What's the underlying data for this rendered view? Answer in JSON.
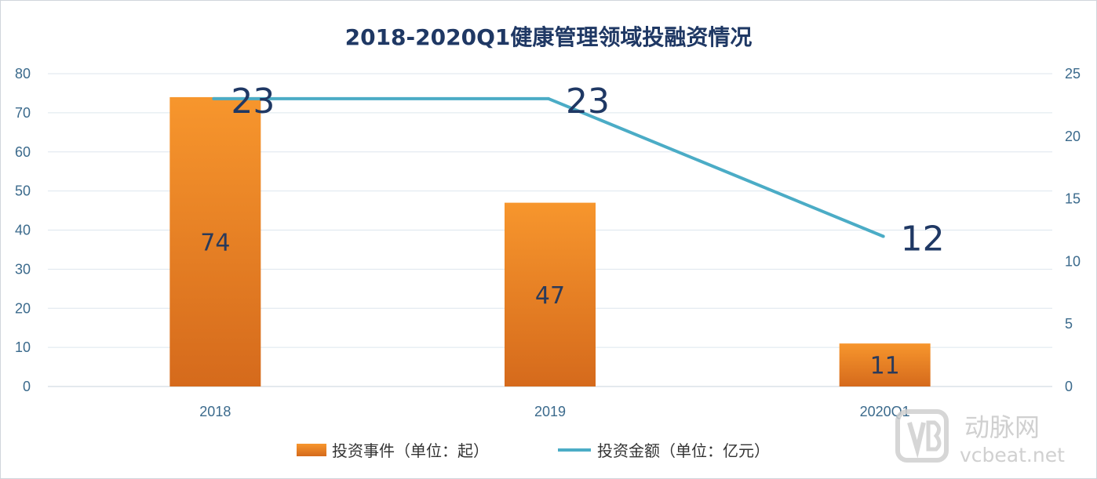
{
  "chart_data": {
    "type": "bar+line",
    "title": "2018-2020Q1健康管理领域投融资情况",
    "categories": [
      "2018",
      "2019",
      "2020Q1"
    ],
    "series": [
      {
        "name": "投资事件（单位：起）",
        "type": "bar",
        "axis": "left",
        "values": [
          74,
          47,
          11
        ],
        "data_labels": [
          "74",
          "47",
          "11"
        ],
        "color": "#f28a24"
      },
      {
        "name": "投资金额（单位：亿元）",
        "type": "line",
        "axis": "right",
        "values": [
          23,
          23,
          12
        ],
        "data_labels": [
          "23",
          "23",
          "12"
        ],
        "color": "#4bacc6"
      }
    ],
    "y_left": {
      "range": [
        0,
        80
      ],
      "ticks": [
        "0",
        "10",
        "20",
        "30",
        "40",
        "50",
        "60",
        "70",
        "80"
      ]
    },
    "y_right": {
      "range": [
        0,
        25
      ],
      "ticks": [
        "0",
        "5",
        "10",
        "15",
        "20",
        "25"
      ]
    },
    "grid": true,
    "legend_position": "bottom"
  },
  "watermark": {
    "brand": "动脉网",
    "site": "vcbeat.net"
  }
}
